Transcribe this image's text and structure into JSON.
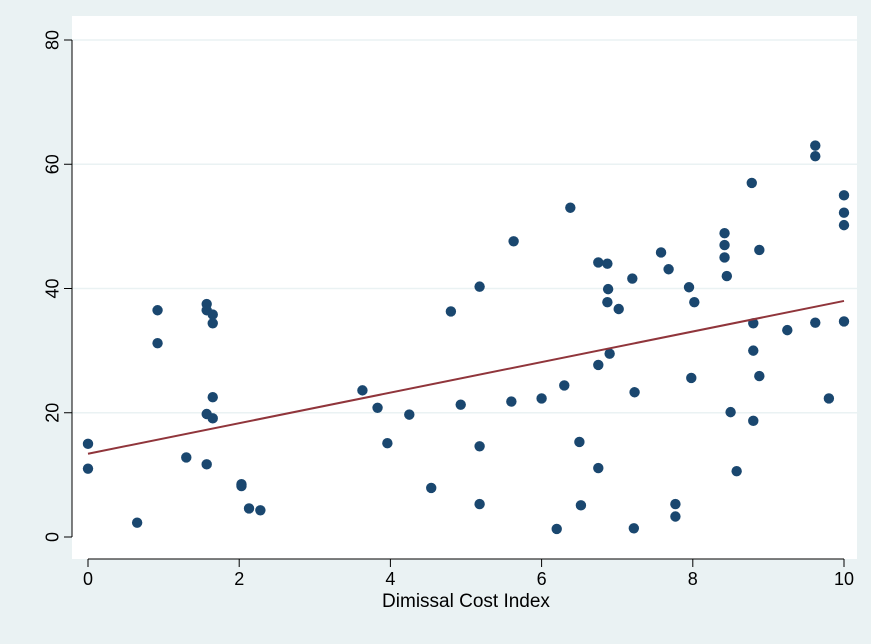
{
  "chart_data": {
    "type": "scatter",
    "title": "",
    "xlabel": "Dimissal Cost Index",
    "ylabel": "",
    "xlim": [
      0,
      10
    ],
    "ylim": [
      0,
      80
    ],
    "x_ticks": [
      0,
      2,
      4,
      6,
      8,
      10
    ],
    "y_ticks": [
      0,
      20,
      40,
      60,
      80
    ],
    "grid": "horizontal",
    "legend": "none",
    "colors": {
      "points": "#1a476f",
      "fit_line": "#90353b",
      "background": "#eaf2f3",
      "plot_background": "#ffffff",
      "grid": "#eaf2f3"
    },
    "points": [
      [
        0,
        15
      ],
      [
        0,
        11
      ],
      [
        0.65,
        2.3
      ],
      [
        0.92,
        36.5
      ],
      [
        0.92,
        31.2
      ],
      [
        1.3,
        12.8
      ],
      [
        1.57,
        37.5
      ],
      [
        1.57,
        36.5
      ],
      [
        1.57,
        19.8
      ],
      [
        1.57,
        11.7
      ],
      [
        1.65,
        35.8
      ],
      [
        1.65,
        34.4
      ],
      [
        1.65,
        22.5
      ],
      [
        1.65,
        19.1
      ],
      [
        2.03,
        8.5
      ],
      [
        2.03,
        8.2
      ],
      [
        2.13,
        4.6
      ],
      [
        2.28,
        4.3
      ],
      [
        3.63,
        23.6
      ],
      [
        3.83,
        20.8
      ],
      [
        3.96,
        15.1
      ],
      [
        4.25,
        19.7
      ],
      [
        4.54,
        7.9
      ],
      [
        4.8,
        36.3
      ],
      [
        4.93,
        21.3
      ],
      [
        5.18,
        40.3
      ],
      [
        5.18,
        14.6
      ],
      [
        5.18,
        5.3
      ],
      [
        5.6,
        21.8
      ],
      [
        5.63,
        47.6
      ],
      [
        6.0,
        22.3
      ],
      [
        6.2,
        1.3
      ],
      [
        6.3,
        24.4
      ],
      [
        6.38,
        53
      ],
      [
        6.5,
        15.3
      ],
      [
        6.52,
        5.1
      ],
      [
        6.75,
        44.2
      ],
      [
        6.75,
        27.7
      ],
      [
        6.75,
        11.1
      ],
      [
        6.87,
        44
      ],
      [
        6.87,
        37.8
      ],
      [
        6.88,
        39.9
      ],
      [
        6.9,
        29.5
      ],
      [
        7.02,
        36.7
      ],
      [
        7.2,
        41.6
      ],
      [
        7.22,
        1.4
      ],
      [
        7.23,
        23.3
      ],
      [
        7.58,
        45.8
      ],
      [
        7.68,
        43.1
      ],
      [
        7.77,
        5.3
      ],
      [
        7.77,
        3.3
      ],
      [
        7.95,
        40.2
      ],
      [
        7.98,
        25.6
      ],
      [
        8.02,
        37.8
      ],
      [
        8.42,
        48.9
      ],
      [
        8.42,
        47
      ],
      [
        8.42,
        45
      ],
      [
        8.45,
        42
      ],
      [
        8.5,
        20.1
      ],
      [
        8.58,
        10.6
      ],
      [
        8.78,
        57
      ],
      [
        8.8,
        34.4
      ],
      [
        8.8,
        30
      ],
      [
        8.8,
        18.7
      ],
      [
        8.88,
        46.2
      ],
      [
        8.88,
        25.9
      ],
      [
        9.25,
        33.3
      ],
      [
        9.62,
        63
      ],
      [
        9.62,
        61.3
      ],
      [
        9.62,
        34.5
      ],
      [
        9.8,
        22.3
      ],
      [
        10,
        55
      ],
      [
        10,
        52.2
      ],
      [
        10,
        50.2
      ],
      [
        10,
        34.7
      ]
    ],
    "fit_line": {
      "x": [
        0,
        10
      ],
      "y": [
        13.4,
        38
      ]
    }
  }
}
